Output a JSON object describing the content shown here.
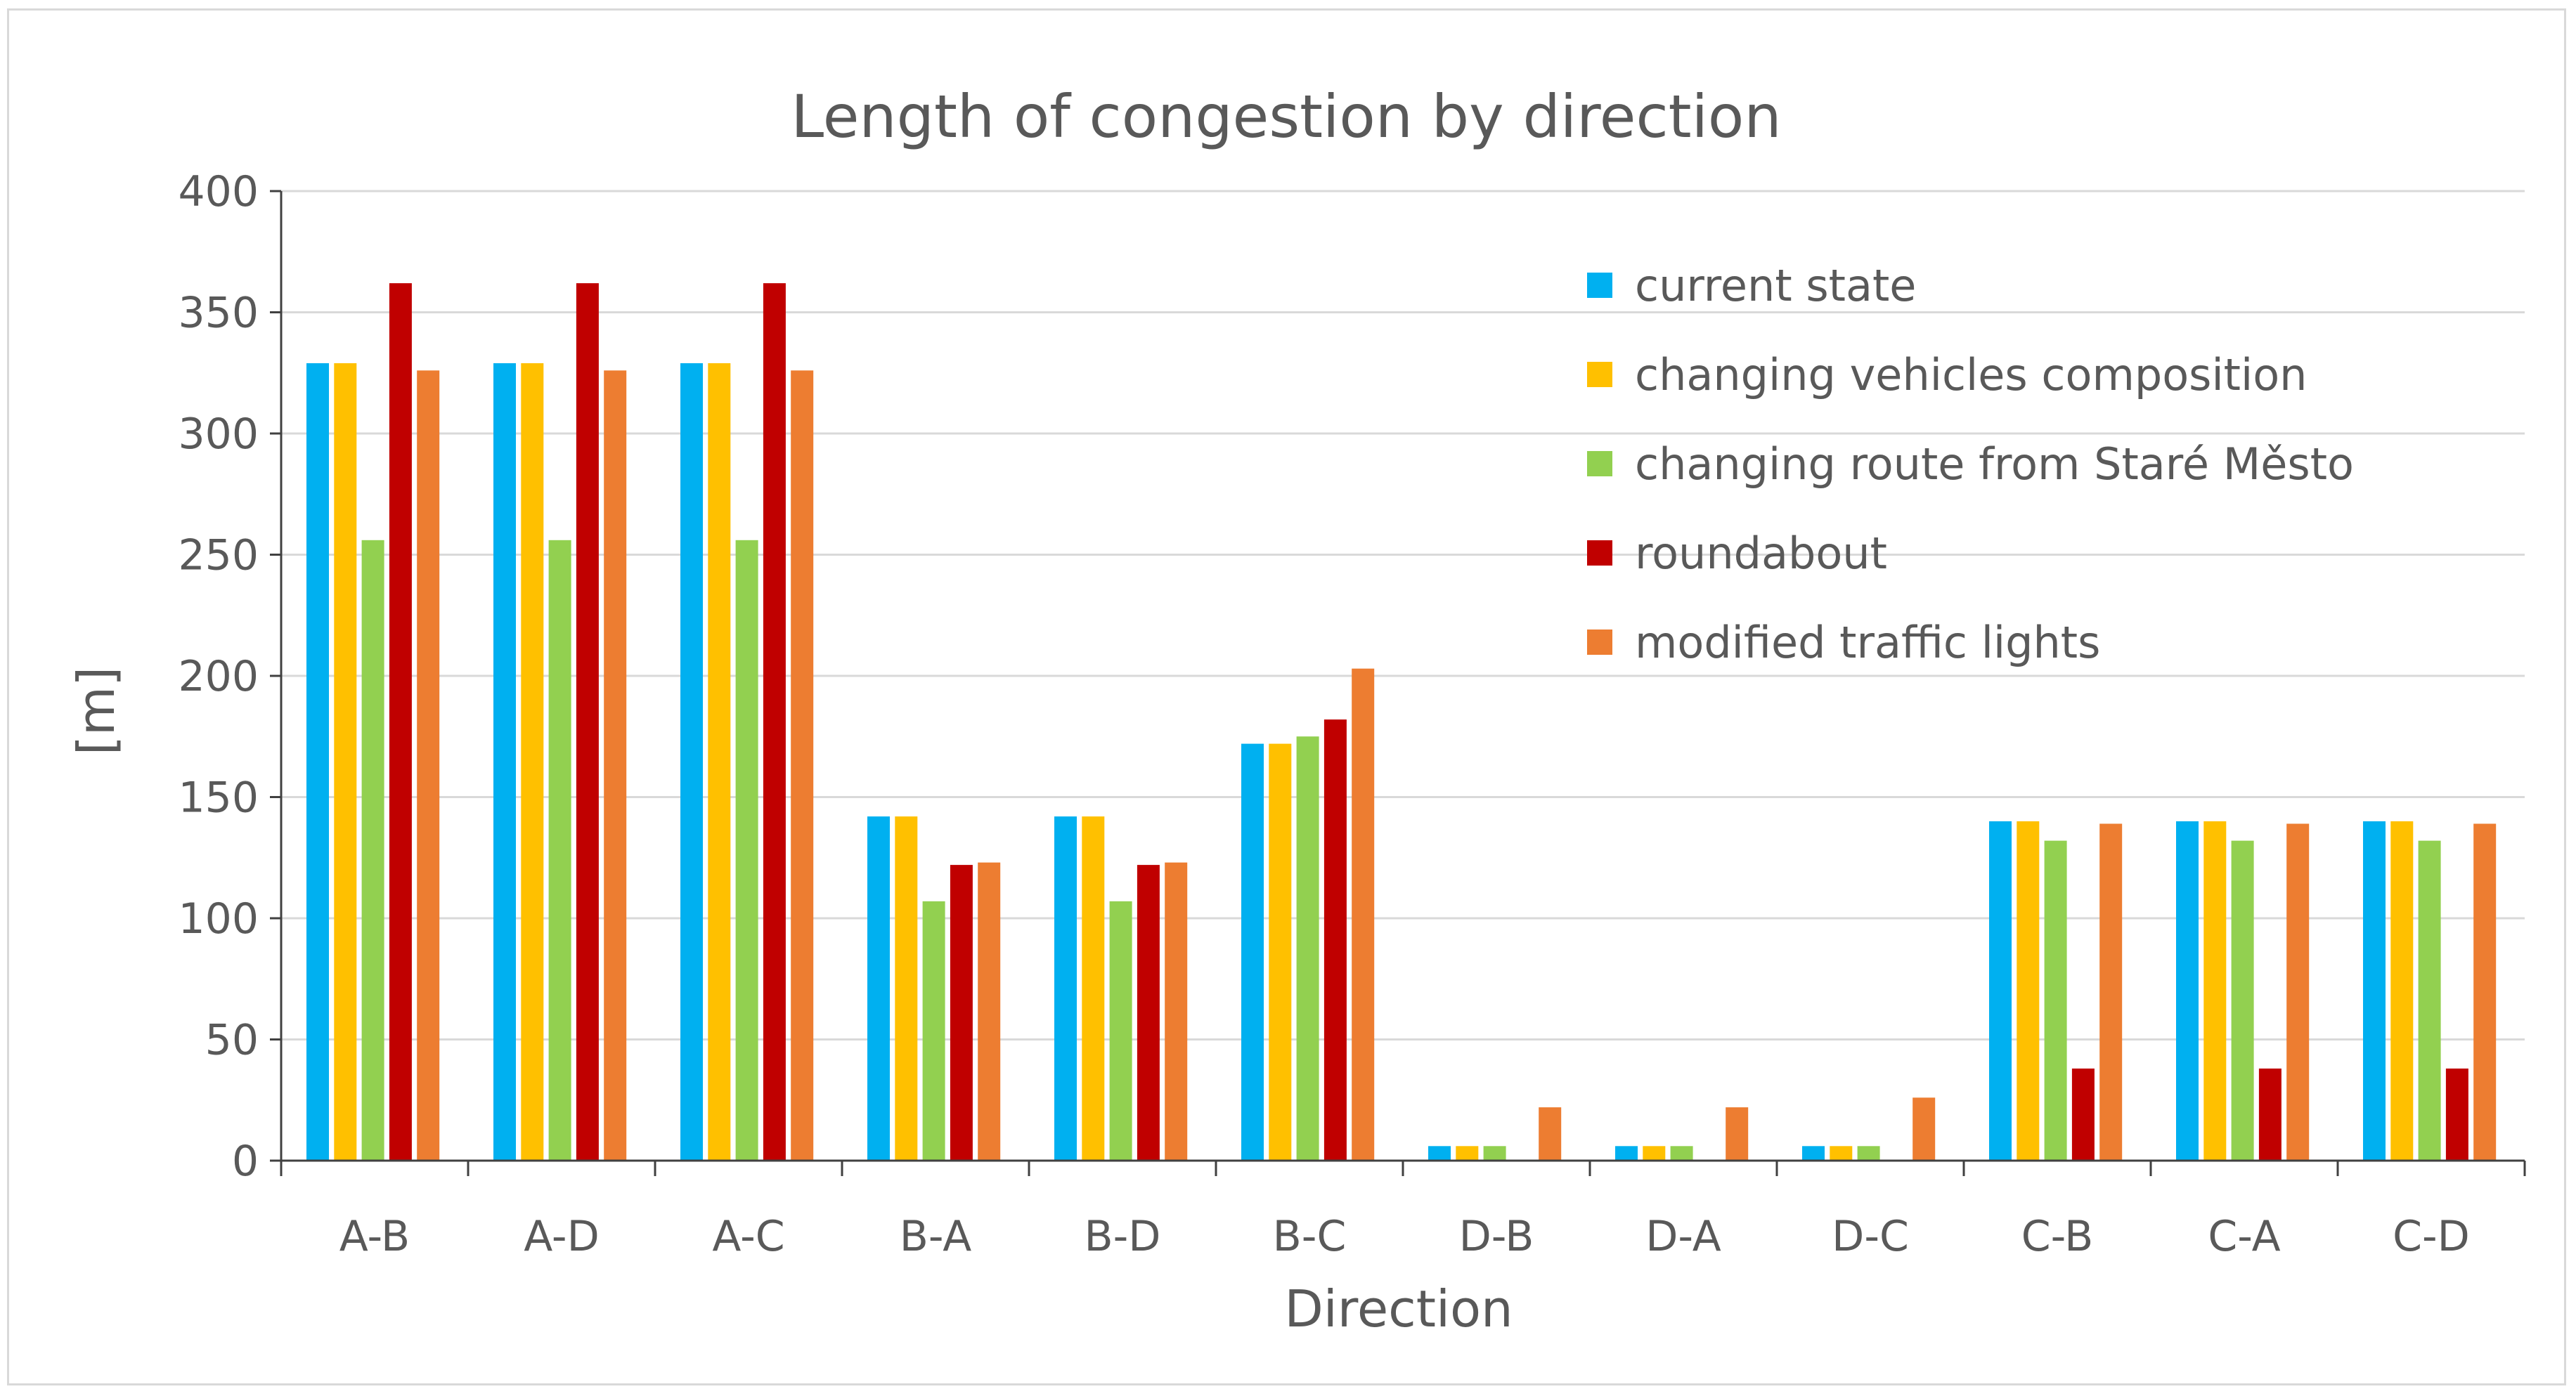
{
  "chart_data": {
    "type": "bar",
    "title": "Length of congestion by direction",
    "xlabel": "Direction",
    "ylabel": "[m]",
    "ylim": [
      0,
      400
    ],
    "yticks": [
      0,
      50,
      100,
      150,
      200,
      250,
      300,
      350,
      400
    ],
    "grid": true,
    "legend_position": "top-right",
    "categories": [
      "A-B",
      "A-D",
      "A-C",
      "B-A",
      "B-D",
      "B-C",
      "D-B",
      "D-A",
      "D-C",
      "C-B",
      "C-A",
      "C-D"
    ],
    "series": [
      {
        "name": "current state",
        "color": "#00b0f0",
        "values": [
          329,
          329,
          329,
          142,
          142,
          172,
          6,
          6,
          6,
          140,
          140,
          140
        ]
      },
      {
        "name": "changing vehicles composition",
        "color": "#ffc000",
        "values": [
          329,
          329,
          329,
          142,
          142,
          172,
          6,
          6,
          6,
          140,
          140,
          140
        ]
      },
      {
        "name": "changing route from Staré Město",
        "color": "#92d050",
        "values": [
          256,
          256,
          256,
          107,
          107,
          175,
          6,
          6,
          6,
          132,
          132,
          132
        ]
      },
      {
        "name": "roundabout",
        "color": "#c00000",
        "values": [
          362,
          362,
          362,
          122,
          122,
          182,
          0,
          0,
          0,
          38,
          38,
          38
        ]
      },
      {
        "name": "modified traffic lights",
        "color": "#ed7d31",
        "values": [
          326,
          326,
          326,
          123,
          123,
          203,
          22,
          22,
          26,
          139,
          139,
          139
        ]
      }
    ]
  }
}
